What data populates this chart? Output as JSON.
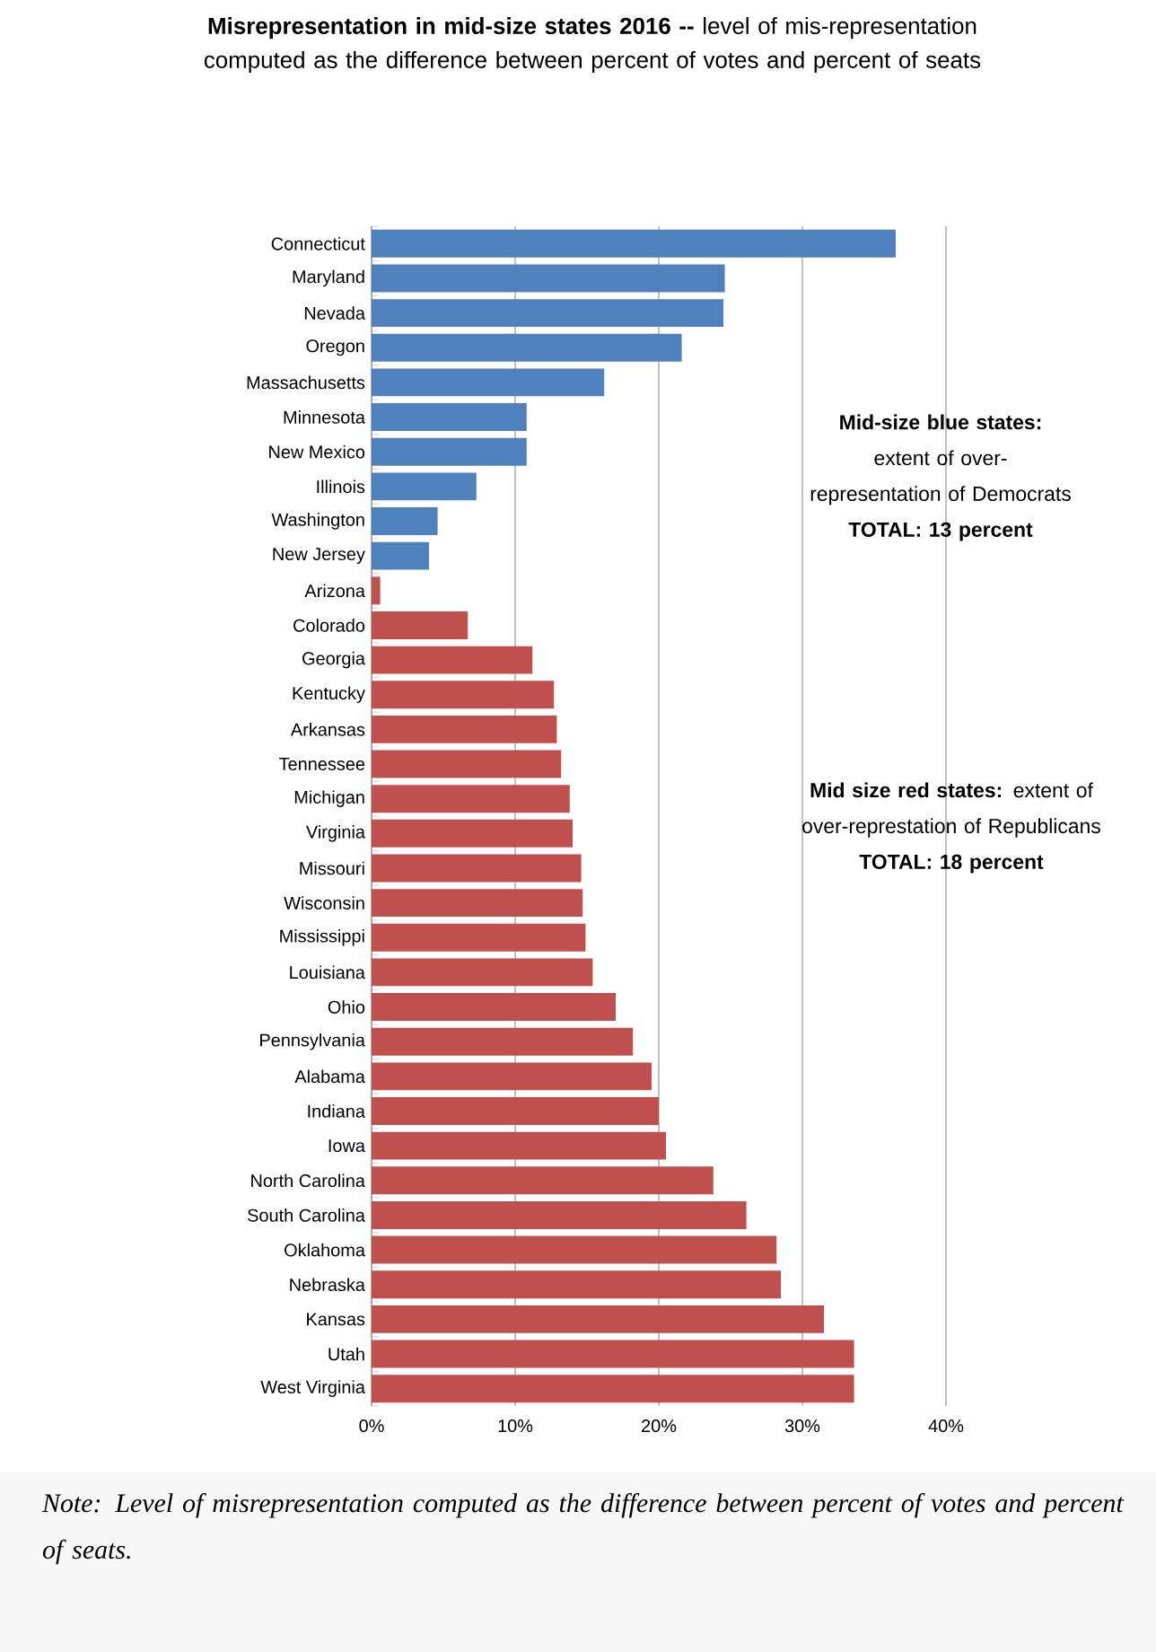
{
  "chart_data": {
    "type": "bar",
    "orientation": "horizontal",
    "title": "**Misrepresentation in mid-size states 2016 --** level of mis-representation computed as the difference between percent of votes and percent of seats",
    "categories": [
      "Connecticut",
      "Maryland",
      "Nevada",
      "Oregon",
      "Massachusetts",
      "Minnesota",
      "New Mexico",
      "Illinois",
      "Washington",
      "New Jersey",
      "Arizona",
      "Colorado",
      "Georgia",
      "Kentucky",
      "Arkansas",
      "Tennessee",
      "Michigan",
      "Virginia",
      "Missouri",
      "Wisconsin",
      "Mississippi",
      "Louisiana",
      "Ohio",
      "Pennsylvania",
      "Alabama",
      "Indiana",
      "Iowa",
      "North Carolina",
      "South Carolina",
      "Oklahoma",
      "Nebraska",
      "Kansas",
      "Utah",
      "West Virginia"
    ],
    "values": [
      36.5,
      24.6,
      24.5,
      21.6,
      16.2,
      10.8,
      10.8,
      7.3,
      4.6,
      4.0,
      0.6,
      6.7,
      11.2,
      12.7,
      12.9,
      13.2,
      13.8,
      14.0,
      14.6,
      14.7,
      14.9,
      15.4,
      17.0,
      18.2,
      19.5,
      20.0,
      20.5,
      23.8,
      26.1,
      28.2,
      28.5,
      31.5,
      33.6,
      33.6
    ],
    "colors": [
      "#4f81bd",
      "#4f81bd",
      "#4f81bd",
      "#4f81bd",
      "#4f81bd",
      "#4f81bd",
      "#4f81bd",
      "#4f81bd",
      "#4f81bd",
      "#4f81bd",
      "#c0504d",
      "#c0504d",
      "#c0504d",
      "#c0504d",
      "#c0504d",
      "#c0504d",
      "#c0504d",
      "#c0504d",
      "#c0504d",
      "#c0504d",
      "#c0504d",
      "#c0504d",
      "#c0504d",
      "#c0504d",
      "#c0504d",
      "#c0504d",
      "#c0504d",
      "#c0504d",
      "#c0504d",
      "#c0504d",
      "#c0504d",
      "#c0504d",
      "#c0504d",
      "#c0504d"
    ],
    "xlim": [
      0,
      40
    ],
    "xticks": [
      {
        "value": 0,
        "label": "0%"
      },
      {
        "value": 10,
        "label": "10%"
      },
      {
        "value": 20,
        "label": "20%"
      },
      {
        "value": 30,
        "label": "30%"
      },
      {
        "value": 40,
        "label": "40%"
      }
    ],
    "grid": "x",
    "annotations": [
      "**Mid-size blue states:** extent of over-representation of Democrats",
      "TOTAL: 13 percent",
      "**Mid size red states:** extent of over-represtation of Republicans",
      "TOTAL: 18 percent",
      "Note: Level of misrepresentation computed as the difference between percent of votes and percent of seats."
    ]
  }
}
